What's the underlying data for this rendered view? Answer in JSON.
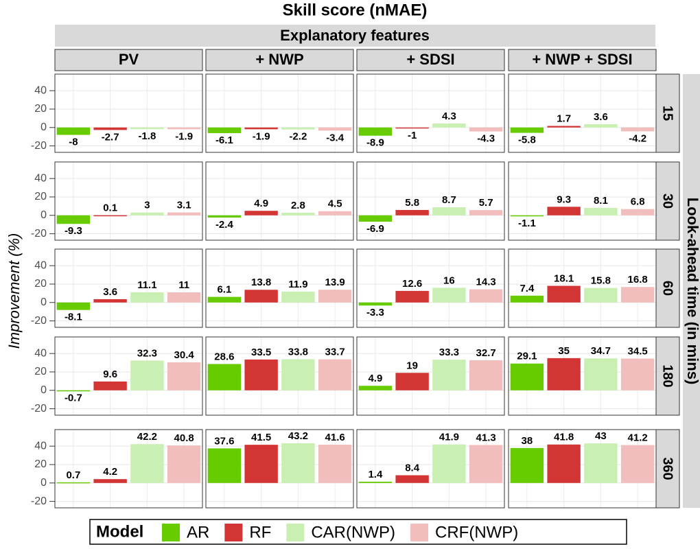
{
  "chart_data": {
    "type": "bar",
    "title": "Skill score (nMAE)",
    "column_strip_title": "Explanatory features",
    "row_strip_title": "Look-ahead time (in mins)",
    "y_label": "Improvement (%)",
    "legend_title": "Model",
    "columns": [
      "PV",
      "+ NWP",
      "+ SDSI",
      "+ NWP + SDSI"
    ],
    "rows": [
      "15",
      "30",
      "60",
      "180",
      "360"
    ],
    "ylim": [
      -27,
      58
    ],
    "yticks": [
      -20,
      0,
      20,
      40
    ],
    "grid": true,
    "series": [
      {
        "name": "AR",
        "color": "#66cc00",
        "values": [
          [
            -8,
            -6.1,
            -8.9,
            -5.8
          ],
          [
            -9.3,
            -2.4,
            -6.9,
            -1.1
          ],
          [
            -8.1,
            6.1,
            -3.3,
            7.4
          ],
          [
            -0.7,
            28.6,
            4.9,
            29.1
          ],
          [
            0.7,
            37.6,
            1.4,
            38
          ]
        ]
      },
      {
        "name": "RF",
        "color": "#d33535",
        "values": [
          [
            -2.7,
            -1.9,
            -1,
            1.7
          ],
          [
            0.1,
            4.9,
            5.8,
            9.3
          ],
          [
            3.6,
            13.8,
            12.6,
            18.1
          ],
          [
            9.6,
            33.5,
            19,
            35
          ],
          [
            4.2,
            41.5,
            8.4,
            41.8
          ]
        ]
      },
      {
        "name": "CAR(NWP)",
        "color": "#c9efb3",
        "values": [
          [
            -1.8,
            -2.2,
            4.3,
            3.6
          ],
          [
            3,
            2.8,
            8.7,
            8.1
          ],
          [
            11.1,
            11.9,
            16,
            15.8
          ],
          [
            32.3,
            33.8,
            33.3,
            34.7
          ],
          [
            42.2,
            43.2,
            41.9,
            43
          ]
        ]
      },
      {
        "name": "CRF(NWP)",
        "color": "#f2bdbd",
        "values": [
          [
            -1.9,
            -3.4,
            -4.3,
            -4.2
          ],
          [
            3.1,
            4.5,
            5.7,
            6.8
          ],
          [
            11,
            13.9,
            14.3,
            16.8
          ],
          [
            30.4,
            33.7,
            32.7,
            34.5
          ],
          [
            40.8,
            41.6,
            41.3,
            41.2
          ]
        ]
      }
    ]
  }
}
